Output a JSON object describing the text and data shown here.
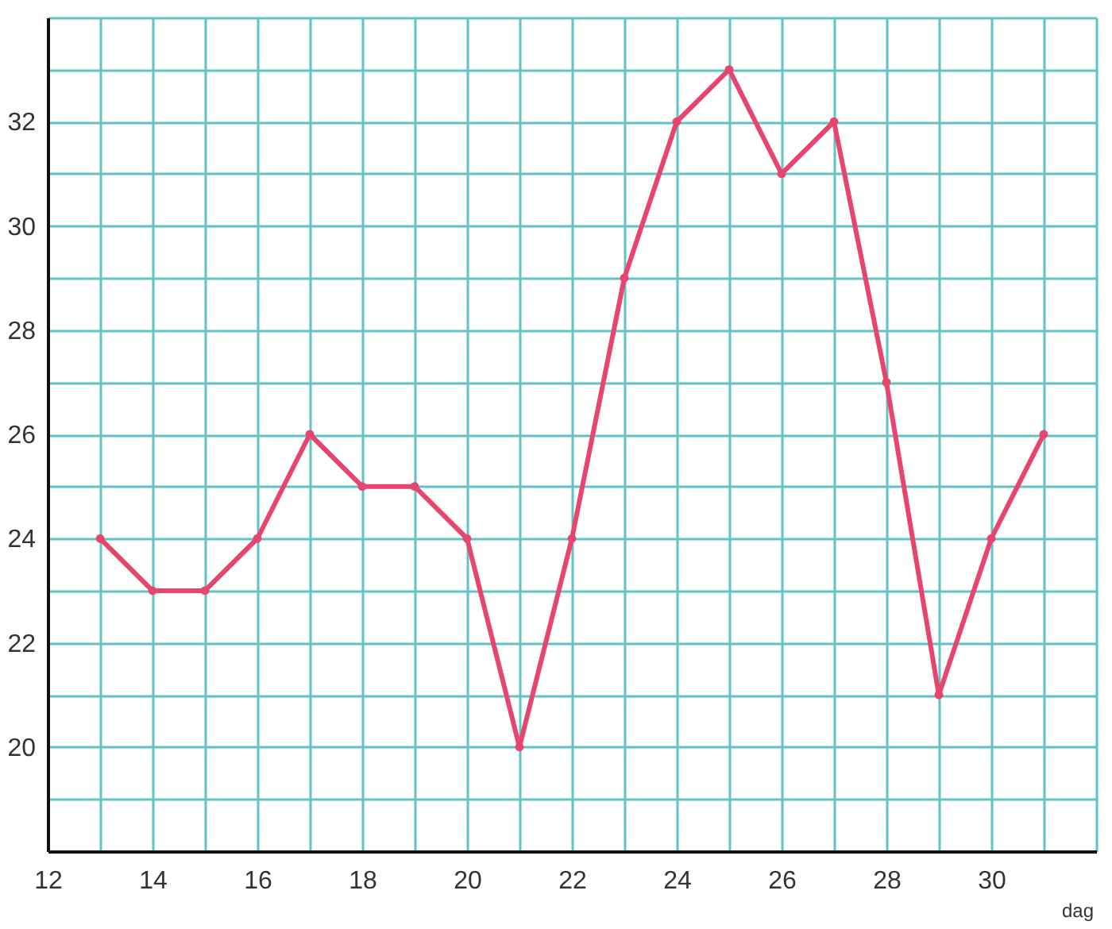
{
  "chart_data": {
    "type": "line",
    "xlabel": "dag",
    "x": [
      13,
      14,
      15,
      16,
      17,
      18,
      19,
      20,
      21,
      22,
      23,
      24,
      25,
      26,
      27,
      28,
      29,
      30,
      31
    ],
    "series": [
      {
        "color": "#e8456e",
        "values": [
          24,
          23,
          23,
          24,
          26,
          25,
          25,
          24,
          20,
          24,
          29,
          32,
          33,
          31,
          32,
          27,
          21,
          24,
          26
        ]
      }
    ],
    "xlim": [
      12,
      32
    ],
    "xticks": [
      12,
      {
        "value": 13,
        "label": null
      },
      14,
      {
        "value": 15,
        "label": null
      },
      16,
      {
        "value": 17,
        "label": null
      },
      18,
      {
        "value": 19,
        "label": null
      },
      20,
      {
        "value": 21,
        "label": null
      },
      22,
      {
        "value": 23,
        "label": null
      },
      24,
      {
        "value": 25,
        "label": null
      },
      26,
      {
        "value": 27,
        "label": null
      },
      28,
      {
        "value": 29,
        "label": null
      },
      30,
      {
        "value": 31,
        "label": null
      },
      {
        "value": 32,
        "label": null
      }
    ],
    "ylim": [
      18,
      34
    ],
    "yticks": [
      {
        "value": 18,
        "label": null
      },
      {
        "value": 19,
        "label": null
      },
      20,
      {
        "value": 21,
        "label": null
      },
      22,
      {
        "value": 23,
        "label": null
      },
      24,
      {
        "value": 25,
        "label": null
      },
      26,
      {
        "value": 27,
        "label": null
      },
      28,
      {
        "value": 29,
        "label": null
      },
      30,
      {
        "value": 31,
        "label": null
      },
      32,
      {
        "value": 33,
        "label": null
      },
      {
        "value": 34,
        "label": null
      }
    ],
    "grid": true,
    "marker": "circle",
    "line_style": "solid"
  }
}
